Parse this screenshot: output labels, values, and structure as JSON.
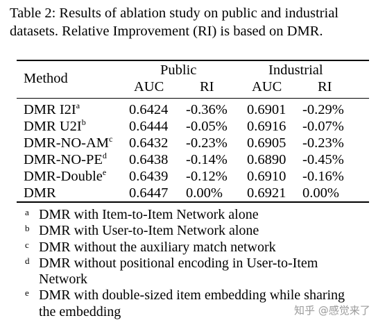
{
  "caption": "Table 2: Results of ablation study on public and industrial datasets. Relative Improvement (RI) is based on DMR.",
  "table": {
    "method_header": "Method",
    "groups": [
      "Public",
      "Industrial"
    ],
    "subheaders": [
      "AUC",
      "RI",
      "AUC",
      "RI"
    ],
    "rows": [
      {
        "method": "DMR I2I",
        "sup": "a",
        "values": [
          "0.6424",
          "-0.36%",
          "0.6901",
          "-0.29%"
        ]
      },
      {
        "method": "DMR U2I",
        "sup": "b",
        "values": [
          "0.6444",
          "-0.05%",
          "0.6916",
          "-0.07%"
        ]
      },
      {
        "method": "DMR-NO-AM",
        "sup": "c",
        "values": [
          "0.6432",
          "-0.23%",
          "0.6905",
          "-0.23%"
        ]
      },
      {
        "method": "DMR-NO-PE",
        "sup": "d",
        "values": [
          "0.6438",
          "-0.14%",
          "0.6890",
          "-0.45%"
        ]
      },
      {
        "method": "DMR-Double",
        "sup": "e",
        "values": [
          "0.6439",
          "-0.12%",
          "0.6910",
          "-0.16%"
        ]
      },
      {
        "method": "DMR",
        "sup": "",
        "values": [
          "0.6447",
          "0.00%",
          "0.6921",
          "0.00%"
        ]
      }
    ]
  },
  "footnotes": [
    {
      "mark": "a",
      "text": "DMR with Item-to-Item Network alone"
    },
    {
      "mark": "b",
      "text": "DMR with User-to-Item Network alone"
    },
    {
      "mark": "c",
      "text": "DMR without the auxiliary match network"
    },
    {
      "mark": "d",
      "text": "DMR without positional encoding in User-to-Item Network"
    },
    {
      "mark": "e",
      "text": "DMR with double-sized item embedding while sharing the embedding"
    }
  ],
  "watermark": "知乎 @感觉来了"
}
